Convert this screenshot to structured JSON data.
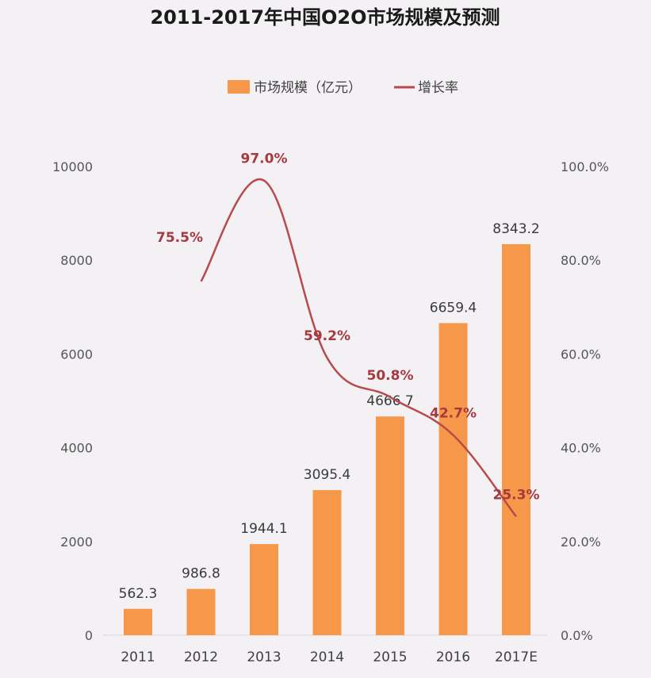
{
  "chart_data": {
    "type": "bar",
    "title": "2011-2017年中国O2O市场规模及预测",
    "categories": [
      "2011",
      "2012",
      "2013",
      "2014",
      "2015",
      "2016",
      "2017E"
    ],
    "series": [
      {
        "name": "市场规模（亿元）",
        "type": "bar",
        "axis": "left",
        "values": [
          562.3,
          986.8,
          1944.1,
          3095.4,
          4666.7,
          6659.4,
          8343.2
        ],
        "labels": [
          "562.3",
          "986.8",
          "1944.1",
          "3095.4",
          "4666.7",
          "6659.4",
          "8343.2"
        ]
      },
      {
        "name": "增长率",
        "type": "line",
        "axis": "right",
        "values": [
          null,
          75.5,
          97.0,
          59.2,
          50.8,
          42.7,
          25.3
        ],
        "labels": [
          null,
          "75.5%",
          "97.0%",
          "59.2%",
          "50.8%",
          "42.7%",
          "25.3%"
        ]
      }
    ],
    "ylim_left": [
      0,
      10000
    ],
    "ylim_right": [
      0,
      100
    ],
    "yticks_left": [
      "0",
      "2000",
      "4000",
      "6000",
      "8000",
      "10000"
    ],
    "yticks_right": [
      "0.0%",
      "20.0%",
      "40.0%",
      "60.0%",
      "80.0%",
      "100.0%"
    ],
    "legend_position": "top",
    "grid": false,
    "colors": {
      "bar": "#f6984a",
      "line": "#b84a4c",
      "rate_label": "#a63a3f"
    }
  }
}
